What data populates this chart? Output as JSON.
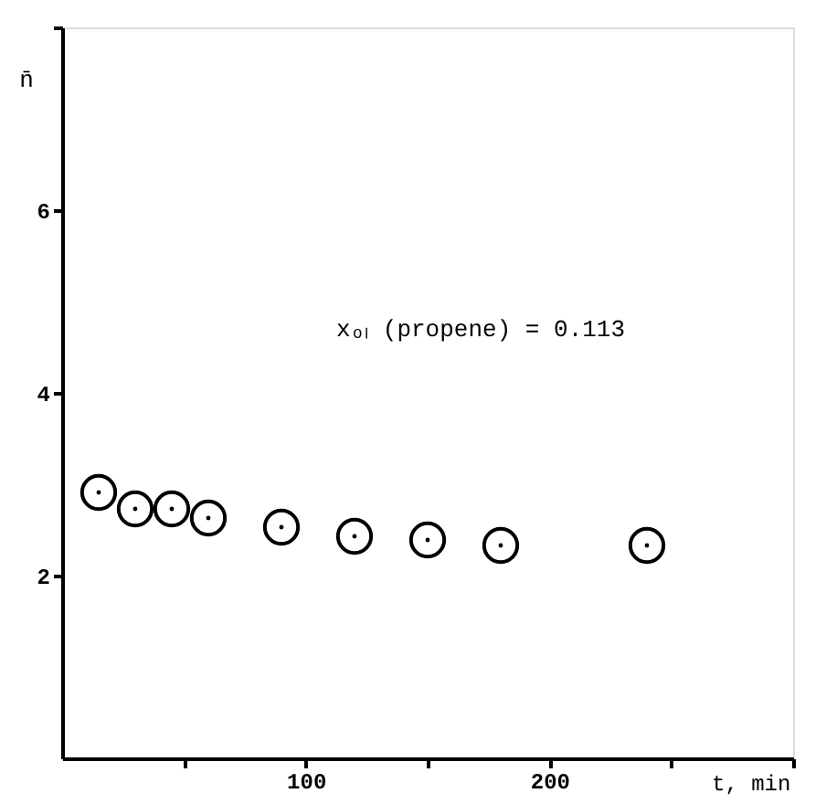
{
  "chart_data": {
    "type": "scatter",
    "xlabel": "t, min",
    "ylabel": "n̄",
    "annotations": [
      "xₒₗ (propene) = 0.113"
    ],
    "x": [
      15,
      30,
      45,
      60,
      90,
      120,
      150,
      180,
      240
    ],
    "series": [
      {
        "color": "#000000",
        "values": [
          2.91,
          2.73,
          2.73,
          2.63,
          2.53,
          2.43,
          2.39,
          2.33,
          2.33
        ]
      }
    ],
    "marker": "circle",
    "grid": false,
    "xlim": [
      0,
      300
    ],
    "xticks": [
      {
        "value": 50,
        "label": null
      },
      100,
      {
        "value": 150,
        "label": null
      },
      200,
      {
        "value": 250,
        "label": null
      },
      {
        "value": 300,
        "label": null
      }
    ],
    "ylim": [
      0,
      8
    ],
    "yticks": [
      2,
      4,
      6,
      {
        "value": 8,
        "label": null
      }
    ]
  }
}
